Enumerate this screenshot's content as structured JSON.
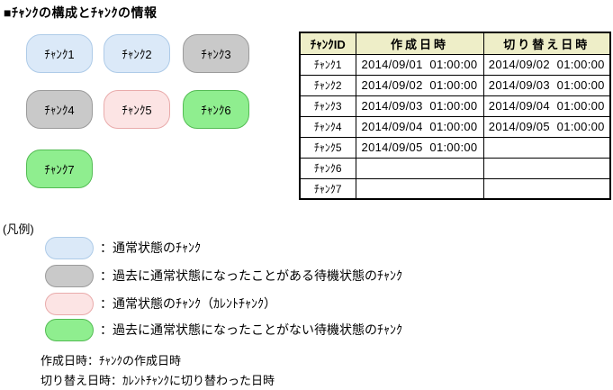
{
  "title": "■ﾁｬﾝｸの構成とﾁｬﾝｸの情報",
  "colors": {
    "normal": {
      "fill": "#dbe9f8",
      "border": "#aecbe8"
    },
    "standby_used": {
      "fill": "#c9c9c9",
      "border": "#9b9b9b"
    },
    "current": {
      "fill": "#fce4e4",
      "border": "#e9abab"
    },
    "standby_unused": {
      "fill": "#8fee8f",
      "border": "#54bc54"
    },
    "table_header_bg": "#eeeec8",
    "table_border": "#000000"
  },
  "chunks": [
    {
      "label": "ﾁｬﾝｸ1",
      "state": "normal"
    },
    {
      "label": "ﾁｬﾝｸ2",
      "state": "normal"
    },
    {
      "label": "ﾁｬﾝｸ3",
      "state": "standby_used"
    },
    {
      "label": "ﾁｬﾝｸ4",
      "state": "standby_used"
    },
    {
      "label": "ﾁｬﾝｸ5",
      "state": "current"
    },
    {
      "label": "ﾁｬﾝｸ6",
      "state": "standby_unused"
    },
    {
      "label": "ﾁｬﾝｸ7",
      "state": "standby_unused"
    }
  ],
  "table": {
    "headers": [
      "ﾁｬﾝｸID",
      "作成日時",
      "切り替え日時"
    ],
    "rows": [
      {
        "id": "ﾁｬﾝｸ1",
        "created": "2014/09/01  01:00:00",
        "switched": "2014/09/02  01:00:00"
      },
      {
        "id": "ﾁｬﾝｸ2",
        "created": "2014/09/02  01:00:00",
        "switched": "2014/09/03  01:00:00"
      },
      {
        "id": "ﾁｬﾝｸ3",
        "created": "2014/09/03  01:00:00",
        "switched": "2014/09/04  01:00:00"
      },
      {
        "id": "ﾁｬﾝｸ4",
        "created": "2014/09/04  01:00:00",
        "switched": "2014/09/05  01:00:00"
      },
      {
        "id": "ﾁｬﾝｸ5",
        "created": "2014/09/05  01:00:00",
        "switched": ""
      },
      {
        "id": "ﾁｬﾝｸ6",
        "created": "",
        "switched": ""
      },
      {
        "id": "ﾁｬﾝｸ7",
        "created": "",
        "switched": ""
      }
    ]
  },
  "legend": {
    "title": "(凡例)",
    "items": [
      {
        "state": "normal",
        "label": "：通常状態のﾁｬﾝｸ"
      },
      {
        "state": "standby_used",
        "label": "：過去に通常状態になったことがある待機状態のﾁｬﾝｸ"
      },
      {
        "state": "current",
        "label": "：通常状態のﾁｬﾝｸ（ｶﾚﾝﾄﾁｬﾝｸ）"
      },
      {
        "state": "standby_unused",
        "label": "：過去に通常状態になったことがない待機状態のﾁｬﾝｸ"
      }
    ],
    "notes": [
      "作成日時：ﾁｬﾝｸの作成日時",
      "切り替え日時：ｶﾚﾝﾄﾁｬﾝｸに切り替わった日時"
    ]
  }
}
